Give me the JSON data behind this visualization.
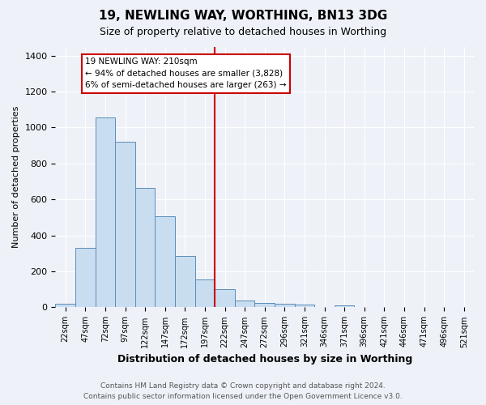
{
  "title1": "19, NEWLING WAY, WORTHING, BN13 3DG",
  "title2": "Size of property relative to detached houses in Worthing",
  "xlabel": "Distribution of detached houses by size in Worthing",
  "ylabel": "Number of detached properties",
  "bar_labels": [
    "22sqm",
    "47sqm",
    "72sqm",
    "97sqm",
    "122sqm",
    "147sqm",
    "172sqm",
    "197sqm",
    "222sqm",
    "247sqm",
    "272sqm",
    "296sqm",
    "321sqm",
    "346sqm",
    "371sqm",
    "396sqm",
    "421sqm",
    "446sqm",
    "471sqm",
    "496sqm",
    "521sqm"
  ],
  "bar_values": [
    20,
    330,
    1055,
    920,
    665,
    505,
    285,
    155,
    100,
    40,
    25,
    22,
    15,
    0,
    12,
    0,
    0,
    0,
    0,
    0,
    0
  ],
  "bar_color": "#c9ddf0",
  "bar_edge_color": "#5b8db8",
  "vline_index": 8,
  "vline_color": "#cc0000",
  "annotation_text": "19 NEWLING WAY: 210sqm\n← 94% of detached houses are smaller (3,828)\n6% of semi-detached houses are larger (263) →",
  "annotation_box_color": "#ffffff",
  "annotation_box_edge": "#cc0000",
  "ylim": [
    0,
    1450
  ],
  "yticks": [
    0,
    200,
    400,
    600,
    800,
    1000,
    1200,
    1400
  ],
  "bg_color": "#eef2f8",
  "grid_color": "#ffffff",
  "footer1": "Contains HM Land Registry data © Crown copyright and database right 2024.",
  "footer2": "Contains public sector information licensed under the Open Government Licence v3.0."
}
